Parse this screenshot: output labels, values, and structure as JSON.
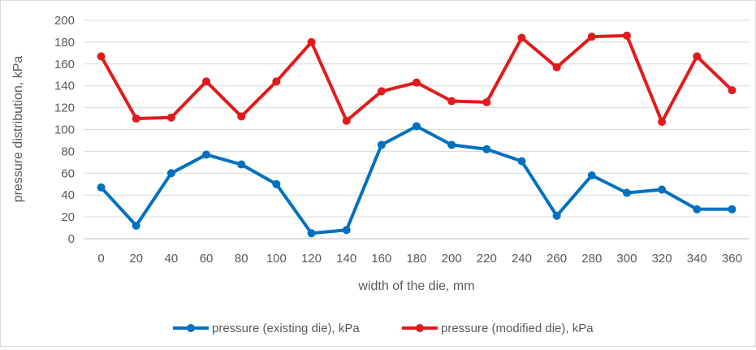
{
  "chart_data": {
    "type": "line",
    "title": "",
    "xlabel": "width of the die, mm",
    "ylabel": "pressure distribution, kPa",
    "x": [
      0,
      20,
      40,
      60,
      80,
      100,
      120,
      140,
      160,
      180,
      200,
      220,
      240,
      260,
      280,
      300,
      320,
      340,
      360
    ],
    "x_tick_labels": [
      "0",
      "20",
      "40",
      "60",
      "80",
      "100",
      "120",
      "140",
      "160",
      "180",
      "200",
      "220",
      "240",
      "260",
      "280",
      "300",
      "320",
      "340",
      "360"
    ],
    "ylim": [
      0,
      200
    ],
    "y_ticks": [
      0,
      20,
      40,
      60,
      80,
      100,
      120,
      140,
      160,
      180,
      200
    ],
    "y_tick_labels": [
      "0",
      "20",
      "40",
      "60",
      "80",
      "100",
      "120",
      "140",
      "160",
      "180",
      "200"
    ],
    "grid": "horizontal",
    "legend_position": "bottom",
    "series": [
      {
        "name": "pressure (existing die), kPa",
        "color": "#0070C0",
        "values": [
          47,
          12,
          60,
          77,
          68,
          50,
          5,
          8,
          86,
          103,
          86,
          82,
          71,
          21,
          58,
          42,
          45,
          27,
          27
        ]
      },
      {
        "name": "pressure (modified die), kPa",
        "color": "#E31A1C",
        "values": [
          167,
          110,
          111,
          144,
          112,
          144,
          180,
          108,
          135,
          143,
          126,
          125,
          184,
          157,
          185,
          186,
          107,
          167,
          136
        ]
      }
    ]
  }
}
